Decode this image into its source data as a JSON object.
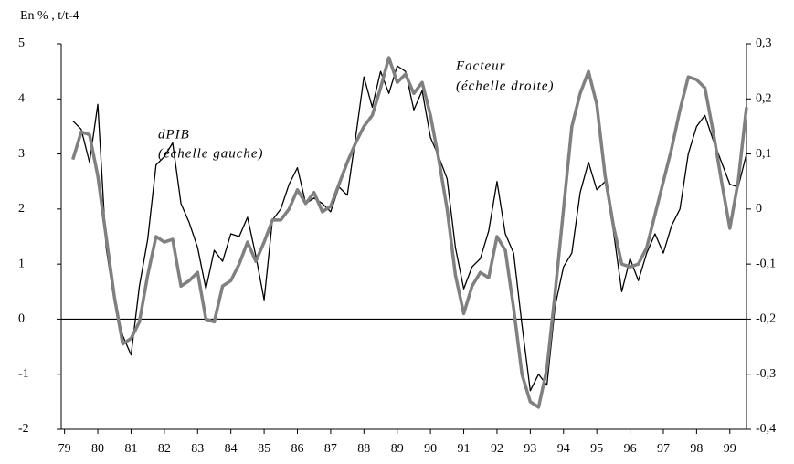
{
  "chart_data": {
    "type": "line",
    "y_axis_label": "En % , t/t-4",
    "x": [
      1979.25,
      1979.5,
      1979.75,
      1980,
      1980.25,
      1980.5,
      1980.75,
      1981,
      1981.25,
      1981.5,
      1981.75,
      1982,
      1982.25,
      1982.5,
      1982.75,
      1983,
      1983.25,
      1983.5,
      1983.75,
      1984,
      1984.25,
      1984.5,
      1984.75,
      1985,
      1985.25,
      1985.5,
      1985.75,
      1986,
      1986.25,
      1986.5,
      1986.75,
      1987,
      1987.25,
      1987.5,
      1987.75,
      1988,
      1988.25,
      1988.5,
      1988.75,
      1989,
      1989.25,
      1989.5,
      1989.75,
      1990,
      1990.25,
      1990.5,
      1990.75,
      1991,
      1991.25,
      1991.5,
      1991.75,
      1992,
      1992.25,
      1992.5,
      1992.75,
      1993,
      1993.25,
      1993.5,
      1993.75,
      1994,
      1994.25,
      1994.5,
      1994.75,
      1995,
      1995.25,
      1995.5,
      1995.75,
      1996,
      1996.25,
      1996.5,
      1996.75,
      1997,
      1997.25,
      1997.5,
      1997.75,
      1998,
      1998.25,
      1998.5,
      1998.75,
      1999,
      1999.25,
      1999.5
    ],
    "series": [
      {
        "name": "dPIB",
        "subtitle": "(échelle gauche)",
        "color": "#000000",
        "width": 1.3,
        "axis": "y",
        "values": [
          3.6,
          3.45,
          2.85,
          3.9,
          1.3,
          0.3,
          -0.3,
          -0.65,
          0.6,
          1.45,
          2.8,
          2.95,
          3.2,
          2.1,
          1.75,
          1.3,
          0.55,
          1.25,
          1.05,
          1.55,
          1.5,
          1.85,
          1.15,
          0.35,
          1.8,
          2.0,
          2.45,
          2.75,
          2.1,
          2.2,
          2.1,
          1.95,
          2.4,
          2.25,
          3.3,
          4.4,
          3.85,
          4.5,
          4.1,
          4.6,
          4.5,
          3.8,
          4.15,
          3.3,
          2.95,
          2.55,
          1.3,
          0.55,
          0.95,
          1.1,
          1.6,
          2.5,
          1.55,
          1.2,
          -0.1,
          -1.3,
          -1.0,
          -1.2,
          0.25,
          0.95,
          1.2,
          2.3,
          2.85,
          2.35,
          2.5,
          1.6,
          0.5,
          1.1,
          0.7,
          1.2,
          1.55,
          1.2,
          1.7,
          2.0,
          3.0,
          3.5,
          3.7,
          3.25,
          2.85,
          2.45,
          2.4,
          3.0
        ]
      },
      {
        "name": "Facteur",
        "subtitle": "(échelle droite)",
        "color": "#808080",
        "width": 3.5,
        "axis": "y2",
        "values": [
          0.09,
          0.14,
          0.135,
          0.06,
          -0.05,
          -0.16,
          -0.245,
          -0.235,
          -0.205,
          -0.12,
          -0.05,
          -0.06,
          -0.055,
          -0.14,
          -0.13,
          -0.115,
          -0.2,
          -0.205,
          -0.14,
          -0.13,
          -0.1,
          -0.06,
          -0.095,
          -0.06,
          -0.02,
          -0.02,
          0.0,
          0.035,
          0.01,
          0.03,
          -0.005,
          0.005,
          0.045,
          0.085,
          0.12,
          0.15,
          0.17,
          0.22,
          0.275,
          0.23,
          0.245,
          0.21,
          0.23,
          0.17,
          0.09,
          0.0,
          -0.12,
          -0.19,
          -0.14,
          -0.115,
          -0.125,
          -0.05,
          -0.075,
          -0.18,
          -0.3,
          -0.35,
          -0.36,
          -0.29,
          -0.15,
          0.0,
          0.15,
          0.21,
          0.25,
          0.19,
          0.06,
          -0.03,
          -0.1,
          -0.105,
          -0.1,
          -0.07,
          -0.01,
          0.05,
          0.11,
          0.18,
          0.24,
          0.235,
          0.22,
          0.14,
          0.05,
          -0.035,
          0.05,
          0.185
        ]
      }
    ],
    "xlim": [
      1978.9,
      1999.5
    ],
    "xticks": [
      {
        "value": 1979,
        "label": "79"
      },
      {
        "value": 1980,
        "label": "80"
      },
      {
        "value": 1981,
        "label": "81"
      },
      {
        "value": 1982,
        "label": "82"
      },
      {
        "value": 1983,
        "label": "83"
      },
      {
        "value": 1984,
        "label": "84"
      },
      {
        "value": 1985,
        "label": "85"
      },
      {
        "value": 1986,
        "label": "86"
      },
      {
        "value": 1987,
        "label": "87"
      },
      {
        "value": 1988,
        "label": "88"
      },
      {
        "value": 1989,
        "label": "89"
      },
      {
        "value": 1990,
        "label": "90"
      },
      {
        "value": 1991,
        "label": "91"
      },
      {
        "value": 1992,
        "label": "92"
      },
      {
        "value": 1993,
        "label": "93"
      },
      {
        "value": 1994,
        "label": "94"
      },
      {
        "value": 1995,
        "label": "95"
      },
      {
        "value": 1996,
        "label": "96"
      },
      {
        "value": 1997,
        "label": "97"
      },
      {
        "value": 1998,
        "label": "98"
      },
      {
        "value": 1999,
        "label": "99"
      }
    ],
    "ylim": [
      -2,
      5
    ],
    "yticks": [
      -2,
      -1,
      0,
      1,
      2,
      3,
      4,
      5
    ],
    "y2lim": [
      -0.4,
      0.3
    ],
    "y2ticks": [
      {
        "value": -0.4,
        "label": "-0,4"
      },
      {
        "value": -0.3,
        "label": "-0,3"
      },
      {
        "value": -0.2,
        "label": "-0,2"
      },
      {
        "value": -0.1,
        "label": "-0,1"
      },
      0,
      {
        "value": 0.1,
        "label": "0,1"
      },
      {
        "value": 0.2,
        "label": "0,2"
      },
      {
        "value": 0.3,
        "label": "0,3"
      }
    ],
    "zero_line": true
  }
}
